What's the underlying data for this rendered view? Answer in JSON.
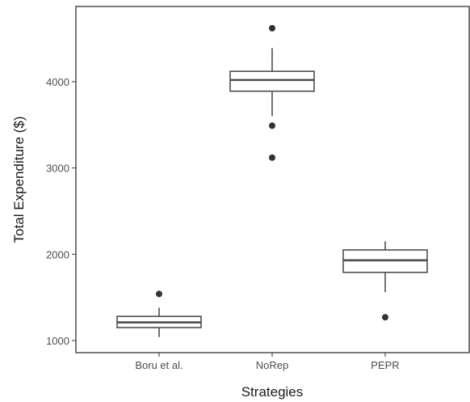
{
  "chart_data": {
    "type": "boxplot",
    "xlabel": "Strategies",
    "ylabel": "Total Expenditure ($)",
    "categories": [
      "Boru et al.",
      "NoRep",
      "PEPR"
    ],
    "ylim": [
      900,
      4800
    ],
    "yticks": [
      1000,
      2000,
      3000,
      4000
    ],
    "grid": false,
    "legend": "none",
    "boxes": [
      {
        "category": "Boru et al.",
        "whisker_low": 1040,
        "q1": 1150,
        "median": 1210,
        "q3": 1280,
        "whisker_high": 1380,
        "outliers": [
          1540
        ]
      },
      {
        "category": "NoRep",
        "whisker_low": 3600,
        "q1": 3890,
        "median": 4020,
        "q3": 4120,
        "whisker_high": 4390,
        "outliers": [
          4620,
          3490,
          3120
        ]
      },
      {
        "category": "PEPR",
        "whisker_low": 1560,
        "q1": 1790,
        "median": 1930,
        "q3": 2050,
        "whisker_high": 2150,
        "outliers": [
          1270
        ]
      }
    ],
    "colors": {
      "box_line": "#4d4d4d",
      "outlier": "#333333",
      "panel_border": "#333333",
      "background": "#ffffff"
    }
  }
}
